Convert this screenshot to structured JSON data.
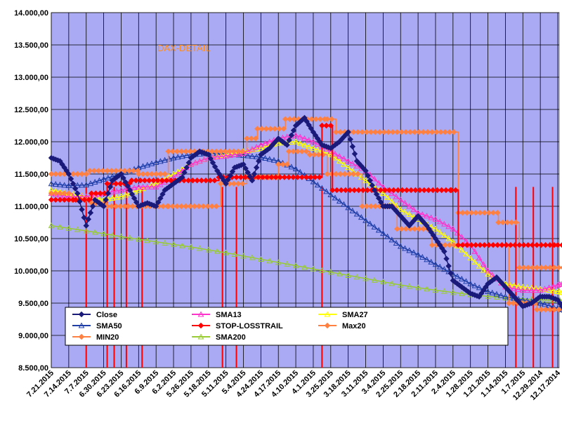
{
  "chart_data": {
    "type": "line",
    "title": "DAX-DETAIL",
    "ylim": [
      8500,
      14000
    ],
    "ytick_step": 500,
    "yticks": [
      "8.500,00",
      "9.000,00",
      "9.500,00",
      "10.000,00",
      "10.500,00",
      "11.000,00",
      "11.500,00",
      "12.000,00",
      "12.500,00",
      "13.000,00",
      "13.500,00",
      "14.000,00"
    ],
    "x_labels": [
      "7.21.2015",
      "7.14.2015",
      "7.7.2015",
      "6.30.2015",
      "6.23.2015",
      "6.16.2015",
      "6.9.2015",
      "6.2.2015",
      "5.26.2015",
      "5.18.2015",
      "5.11.2015",
      "5.4.2015",
      "4.24.2015",
      "4.17.2015",
      "4.10.2015",
      "4.1.2015",
      "3.25.2015",
      "3.18.2015",
      "3.11.2015",
      "3.4.2015",
      "2.25.2015",
      "2.18.2015",
      "2.11.2015",
      "2.4.2015",
      "1.28.2015",
      "1.21.2015",
      "1.14.2015",
      "1.7.2015",
      "12.29.2014",
      "12.17.2014"
    ],
    "grid": true,
    "legend_position": "bottom-left",
    "background": "#aaaaf4",
    "stop_drops_at": [
      2.0,
      3.2,
      3.6,
      4.3,
      5.2,
      9.8,
      10.6,
      15.5,
      26.6,
      27.6,
      28.7,
      29.5
    ],
    "series": [
      {
        "name": "Close",
        "color": "#1a1a7a",
        "marker": "diamond",
        "x": [
          0,
          0.5,
          1,
          1.5,
          2,
          2.5,
          3,
          3.5,
          4,
          4.5,
          5,
          5.5,
          6,
          6.5,
          7,
          7.5,
          8,
          8.5,
          9,
          9.5,
          10,
          10.5,
          11,
          11.5,
          12,
          12.5,
          13,
          13.5,
          14,
          14.5,
          15,
          15.5,
          16,
          16.5,
          17,
          17.5,
          18,
          18.5,
          19,
          19.5,
          20,
          20.5,
          21,
          21.5,
          22,
          22.5,
          23,
          23.5,
          24,
          24.5,
          25,
          25.5,
          26,
          26.5,
          27,
          27.5,
          28,
          28.5,
          29,
          29.5
        ],
        "values": [
          11750,
          11700,
          11500,
          11200,
          10700,
          11100,
          11000,
          11400,
          11500,
          11250,
          11000,
          11050,
          11000,
          11250,
          11350,
          11450,
          11750,
          11850,
          11800,
          11550,
          11350,
          11600,
          11650,
          11400,
          11800,
          11900,
          12050,
          11950,
          12250,
          12370,
          12150,
          11950,
          11900,
          12000,
          12150,
          11700,
          11550,
          11250,
          11000,
          11000,
          10850,
          10700,
          10850,
          10700,
          10500,
          10300,
          9850,
          9750,
          9650,
          9600,
          9800,
          9900,
          9750,
          9600,
          9450,
          9500,
          9600,
          9600,
          9550,
          9350
        ]
      },
      {
        "name": "SMA13",
        "color": "#ff33cc",
        "marker": "triangle",
        "x": [
          0,
          1,
          2,
          3,
          4,
          5,
          6,
          7,
          8,
          9,
          10,
          11,
          12,
          13,
          14,
          15,
          16,
          17,
          18,
          19,
          20,
          21,
          22,
          23,
          24,
          25,
          26,
          27,
          28,
          29,
          29.5
        ],
        "values": [
          11200,
          11150,
          11150,
          11200,
          11250,
          11300,
          11300,
          11450,
          11650,
          11750,
          11780,
          11820,
          11950,
          12050,
          12100,
          12000,
          11850,
          11700,
          11550,
          11300,
          11100,
          10900,
          10800,
          10650,
          10400,
          10000,
          9750,
          9700,
          9700,
          9780,
          9820
        ]
      },
      {
        "name": "SMA27",
        "color": "#ffff00",
        "marker": "triangle",
        "x": [
          0,
          1,
          2,
          3,
          4,
          5,
          6,
          7,
          8,
          9,
          10,
          11,
          12,
          13,
          14,
          15,
          16,
          17,
          18,
          19,
          20,
          21,
          22,
          23,
          24,
          25,
          26,
          27,
          28,
          29,
          29.5
        ],
        "values": [
          11250,
          11200,
          11150,
          11100,
          11150,
          11250,
          11350,
          11500,
          11650,
          11750,
          11800,
          11850,
          11900,
          11980,
          12000,
          11900,
          11800,
          11600,
          11400,
          11200,
          10950,
          10800,
          10650,
          10450,
          10200,
          9950,
          9800,
          9750,
          9720,
          9680,
          9650
        ]
      },
      {
        "name": "SMA50",
        "color": "#1f3ea8",
        "marker": "triangle",
        "x": [
          0,
          1,
          2,
          3,
          4,
          5,
          6,
          7,
          8,
          9,
          10,
          11,
          12,
          13,
          14,
          15,
          16,
          17,
          18,
          19,
          20,
          21,
          22,
          23,
          24,
          25,
          26,
          27,
          28,
          29,
          29.5
        ],
        "values": [
          11350,
          11320,
          11330,
          11420,
          11500,
          11600,
          11680,
          11750,
          11800,
          11820,
          11810,
          11790,
          11760,
          11700,
          11580,
          11380,
          11180,
          10980,
          10780,
          10580,
          10380,
          10250,
          10100,
          9950,
          9800,
          9680,
          9600,
          9550,
          9500,
          9420,
          9380
        ]
      },
      {
        "name": "STOP-LOSSTRAIL",
        "color": "#ff0000",
        "marker": "diamond",
        "step": true,
        "x": [
          0,
          1.4,
          2.3,
          3.2,
          4.6,
          9.6,
          10.6,
          15.5,
          16.1,
          22.9,
          23.3,
          29.0,
          29.8
        ],
        "values": [
          11100,
          11100,
          11200,
          11350,
          11400,
          11450,
          11450,
          12250,
          11250,
          11250,
          10400,
          10400,
          10400
        ]
      },
      {
        "name": "Max20",
        "color": "#ff8040",
        "marker": "diamond",
        "step": true,
        "x": [
          0,
          1,
          2.2,
          5,
          6.7,
          9.7,
          11.2,
          11.8,
          13.4,
          15.8,
          16.3,
          19.8,
          23.3,
          25.6,
          26.8,
          29.8
        ],
        "values": [
          11500,
          11500,
          11550,
          11500,
          11850,
          11850,
          12050,
          12200,
          12350,
          12350,
          12150,
          12150,
          10900,
          10750,
          10050,
          10100
        ]
      },
      {
        "name": "MIN20",
        "color": "#ff8040",
        "marker": "diamond",
        "step": true,
        "x": [
          0,
          1.2,
          2.3,
          3.2,
          4.4,
          6.7,
          9.7,
          11.2,
          13.0,
          13.6,
          14.8,
          15.8,
          17.8,
          18.8,
          19.8,
          21.8,
          23.3,
          26.2,
          27.8,
          29.8
        ],
        "values": [
          11200,
          11100,
          11050,
          11000,
          11000,
          11000,
          11350,
          11450,
          11650,
          11850,
          11800,
          11500,
          11000,
          11000,
          10650,
          10400,
          10400,
          9500,
          9400,
          9350
        ]
      },
      {
        "name": "SMA200",
        "color": "#99cc33",
        "marker": "triangle",
        "x": [
          0,
          2,
          4,
          6,
          8,
          10,
          12,
          14,
          16,
          18,
          20,
          22,
          24,
          26,
          28,
          29.5
        ],
        "values": [
          10700,
          10620,
          10530,
          10450,
          10370,
          10280,
          10180,
          10080,
          9980,
          9880,
          9780,
          9700,
          9630,
          9580,
          9550,
          9540
        ]
      }
    ]
  }
}
